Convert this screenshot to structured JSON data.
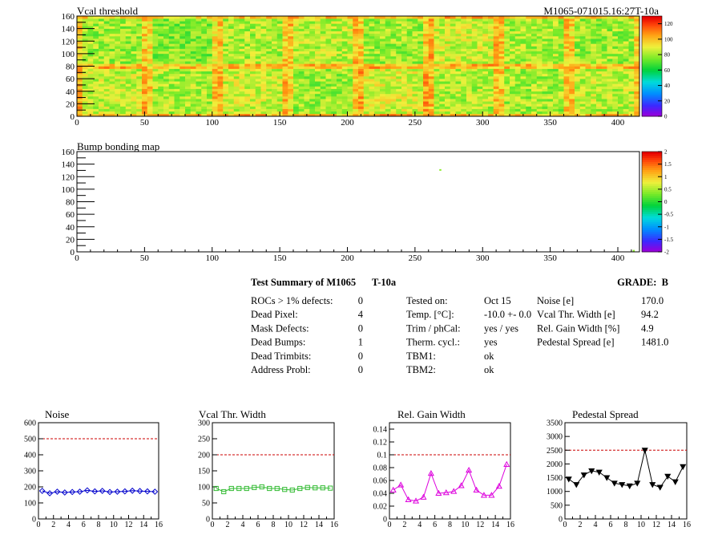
{
  "module_id": "M1065-071015.16:27T-10a",
  "chart_data": [
    {
      "type": "heatmap",
      "title": "Vcal threshold",
      "x_ticks": [
        "0",
        "50",
        "100",
        "150",
        "200",
        "250",
        "300",
        "350",
        "400"
      ],
      "xlim": [
        0,
        416
      ],
      "y_ticks": [
        "0",
        "20",
        "40",
        "60",
        "80",
        "100",
        "120",
        "140",
        "160"
      ],
      "ylim": [
        0,
        160
      ],
      "palette_ticks": [
        "0",
        "20",
        "40",
        "60",
        "80",
        "100",
        "120"
      ],
      "z_range": [
        0,
        130
      ],
      "roc_grid": {
        "cols": 8,
        "rows": 2,
        "col_width": 52,
        "row_height": 80
      },
      "roc_mean_values": [
        [
          85,
          82,
          86,
          80,
          88,
          83,
          81,
          84
        ],
        [
          80,
          76,
          82,
          84,
          80,
          86,
          82,
          80
        ]
      ]
    },
    {
      "type": "heatmap",
      "title": "Bump bonding map",
      "x_ticks": [
        "0",
        "50",
        "100",
        "150",
        "200",
        "250",
        "300",
        "350",
        "400"
      ],
      "xlim": [
        0,
        416
      ],
      "y_ticks": [
        "0",
        "20",
        "40",
        "60",
        "80",
        "100",
        "120",
        "140",
        "160"
      ],
      "ylim": [
        0,
        160
      ],
      "palette_ticks": [
        "2",
        "1.5",
        "1",
        "0.5",
        "0",
        "-0.5",
        "-1",
        "-1.5",
        "-2"
      ],
      "z_range": [
        -2,
        2
      ],
      "points": [
        {
          "x": 268,
          "y": 131,
          "value": 0.4
        },
        {
          "x": 411,
          "y": 2,
          "value": 0.4
        }
      ]
    },
    {
      "type": "scatter",
      "title": "Noise",
      "x_ticks": [
        "0",
        "2",
        "4",
        "6",
        "8",
        "10",
        "12",
        "14",
        "16"
      ],
      "xlim": [
        0,
        16
      ],
      "y_ticks": [
        "0",
        "100",
        "200",
        "300",
        "400",
        "500",
        "600"
      ],
      "ylim": [
        0,
        600
      ],
      "threshold": 500,
      "color": "#0000cc",
      "marker": "diamond",
      "x": [
        0,
        1,
        2,
        3,
        4,
        5,
        6,
        7,
        8,
        9,
        10,
        11,
        12,
        13,
        14,
        15
      ],
      "y": [
        175,
        160,
        170,
        165,
        168,
        170,
        178,
        172,
        175,
        168,
        170,
        172,
        176,
        174,
        172,
        170
      ]
    },
    {
      "type": "scatter",
      "title": "Vcal Thr. Width",
      "x_ticks": [
        "0",
        "2",
        "4",
        "6",
        "8",
        "10",
        "12",
        "14",
        "16"
      ],
      "xlim": [
        0,
        16
      ],
      "y_ticks": [
        "0",
        "50",
        "100",
        "150",
        "200",
        "250",
        "300"
      ],
      "ylim": [
        0,
        300
      ],
      "threshold": 200,
      "color": "#33bb33",
      "marker": "square",
      "x": [
        0,
        1,
        2,
        3,
        4,
        5,
        6,
        7,
        8,
        9,
        10,
        11,
        12,
        13,
        14,
        15
      ],
      "y": [
        95,
        85,
        95,
        95,
        95,
        98,
        100,
        95,
        95,
        92,
        90,
        95,
        98,
        97,
        97,
        96
      ]
    },
    {
      "type": "line",
      "title": "Rel. Gain Width",
      "x_ticks": [
        "0",
        "2",
        "4",
        "6",
        "8",
        "10",
        "12",
        "14",
        "16"
      ],
      "xlim": [
        0,
        16
      ],
      "y_ticks": [
        "0",
        "0.02",
        "0.04",
        "0.06",
        "0.08",
        "0.1",
        "0.12",
        "0.14"
      ],
      "ylim": [
        0,
        0.15
      ],
      "threshold": 0.1,
      "color": "#dd00dd",
      "marker": "triangle-up",
      "x": [
        0,
        1,
        2,
        3,
        4,
        5,
        6,
        7,
        8,
        9,
        10,
        11,
        12,
        13,
        14,
        15
      ],
      "y": [
        0.045,
        0.053,
        0.03,
        0.028,
        0.034,
        0.071,
        0.04,
        0.041,
        0.043,
        0.052,
        0.076,
        0.045,
        0.037,
        0.037,
        0.051,
        0.085
      ]
    },
    {
      "type": "line",
      "title": "Pedestal Spread",
      "x_ticks": [
        "0",
        "2",
        "4",
        "6",
        "8",
        "10",
        "12",
        "14",
        "16"
      ],
      "xlim": [
        0,
        16
      ],
      "y_ticks": [
        "0",
        "500",
        "1000",
        "1500",
        "2000",
        "2500",
        "3000",
        "3500"
      ],
      "ylim": [
        0,
        3500
      ],
      "threshold": 2500,
      "color": "#000000",
      "marker": "triangle-down",
      "x": [
        0,
        1,
        2,
        3,
        4,
        5,
        6,
        7,
        8,
        9,
        10,
        11,
        12,
        13,
        14,
        15
      ],
      "y": [
        1450,
        1250,
        1600,
        1750,
        1700,
        1500,
        1300,
        1250,
        1200,
        1300,
        2500,
        1250,
        1150,
        1550,
        1350,
        1900
      ]
    }
  ],
  "summary": {
    "title": "Test Summary of M1065",
    "temp_label": "T-10a",
    "grade": "GRADE:  B",
    "col1": [
      {
        "label": "ROCs > 1% defects:",
        "value": "0"
      },
      {
        "label": "Dead Pixel:",
        "value": "4"
      },
      {
        "label": "Mask Defects:",
        "value": "0"
      },
      {
        "label": "Dead Bumps:",
        "value": "1"
      },
      {
        "label": "Dead Trimbits:",
        "value": "0"
      },
      {
        "label": "Address Probl:",
        "value": "0"
      }
    ],
    "col2": [
      {
        "label": "Tested on:",
        "value": "Oct 15"
      },
      {
        "label": "Temp. [°C]:",
        "value": "-10.0 +- 0.0"
      },
      {
        "label": "Trim / phCal:",
        "value": "yes / yes"
      },
      {
        "label": "Therm. cycl.:",
        "value": "yes"
      },
      {
        "label": "TBM1:",
        "value": "ok"
      },
      {
        "label": "TBM2:",
        "value": "ok"
      }
    ],
    "col3": [
      {
        "label": "Noise [e]",
        "value": "170.0"
      },
      {
        "label": "Vcal Thr. Width [e]",
        "value": "94.2"
      },
      {
        "label": "Rel. Gain Width [%]",
        "value": "4.9"
      },
      {
        "label": "Pedestal Spread [e]",
        "value": "1481.0"
      }
    ]
  }
}
